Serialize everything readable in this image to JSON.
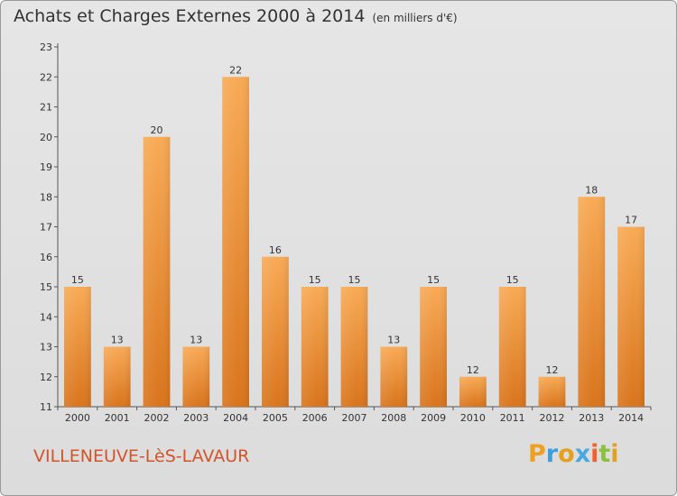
{
  "title": "Achats et Charges Externes 2000 à 2014",
  "unit": "(en milliers d'€)",
  "location": "VILLENEUVE-LèS-LAVAUR",
  "logo": {
    "letters": [
      "P",
      "r",
      "o",
      "x",
      "i",
      "t",
      "i"
    ],
    "colors": [
      "#f0a020",
      "#3aa0e0",
      "#e6a020",
      "#4aa8e0",
      "#f06030",
      "#8cc040",
      "#e6a020"
    ]
  },
  "colors": {
    "bar_light": "#f8aa55",
    "bar_dark": "#d9741c",
    "label": "#333333"
  },
  "chart_data": {
    "type": "bar",
    "categories": [
      "2000",
      "2001",
      "2002",
      "2003",
      "2004",
      "2005",
      "2006",
      "2007",
      "2008",
      "2009",
      "2010",
      "2011",
      "2012",
      "2013",
      "2014"
    ],
    "values": [
      15,
      13,
      20,
      13,
      22,
      16,
      15,
      15,
      13,
      15,
      12,
      15,
      12,
      18,
      17
    ],
    "value_labels": [
      "15",
      "13",
      "20",
      "13",
      "22",
      "16",
      "15",
      "15",
      "13",
      "15",
      "12",
      "15",
      "12",
      "18",
      "17"
    ],
    "y_ticks": [
      "11",
      "12",
      "13",
      "14",
      "15",
      "16",
      "17",
      "18",
      "19",
      "20",
      "21",
      "22",
      "23"
    ],
    "ylim": [
      11,
      23
    ],
    "grid": false
  }
}
